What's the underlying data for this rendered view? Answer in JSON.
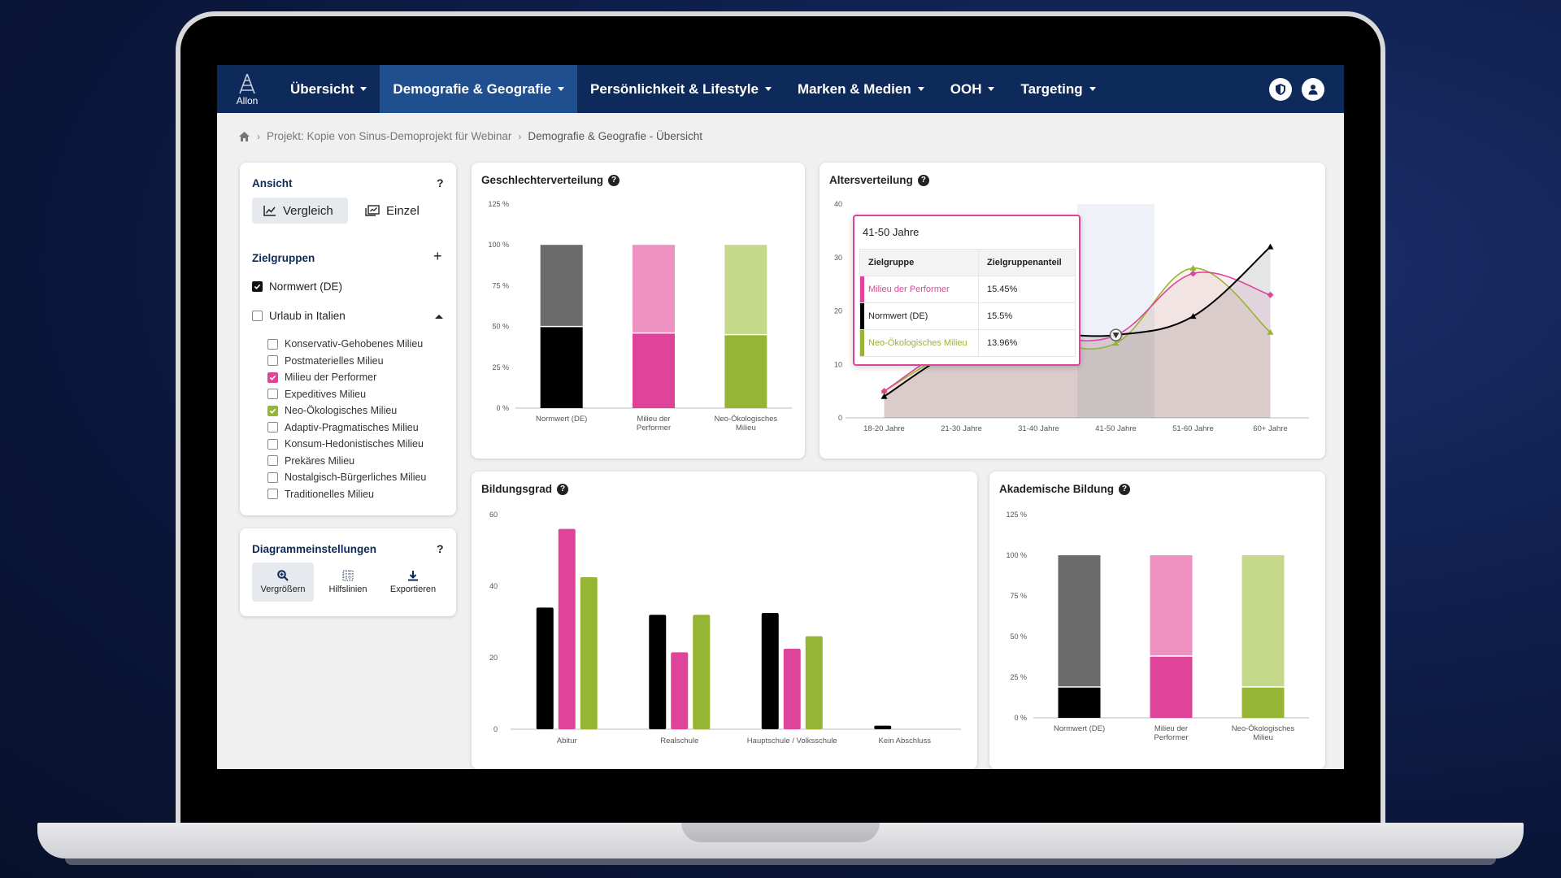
{
  "nav": {
    "logo_text": "Allon",
    "items": [
      {
        "label": "Übersicht",
        "active": false
      },
      {
        "label": "Demografie & Geografie",
        "active": true
      },
      {
        "label": "Persönlichkeit & Lifestyle",
        "active": false
      },
      {
        "label": "Marken & Medien",
        "active": false
      },
      {
        "label": "OOH",
        "active": false
      },
      {
        "label": "Targeting",
        "active": false
      }
    ],
    "icons": [
      "shield-icon",
      "user-icon"
    ]
  },
  "breadcrumb": {
    "project": "Projekt: Kopie von Sinus-Demoprojekt für Webinar",
    "current": "Demografie & Geografie - Übersicht"
  },
  "sidebar": {
    "ansicht": {
      "title": "Ansicht",
      "help": "?",
      "compare_label": "Vergleich",
      "single_label": "Einzel"
    },
    "zielgruppen": {
      "title": "Zielgruppen",
      "add": "+",
      "normwert_label": "Normwert (DE)",
      "group_label": "Urlaub in Italien",
      "milieus": [
        {
          "label": "Konservativ-Gehobenes Milieu",
          "checked": false
        },
        {
          "label": "Postmaterielles Milieu",
          "checked": false
        },
        {
          "label": "Milieu der Performer",
          "checked": true,
          "color": "#e0449a"
        },
        {
          "label": "Expeditives Milieu",
          "checked": false
        },
        {
          "label": "Neo-Ökologisches Milieu",
          "checked": true,
          "color": "#97b534"
        },
        {
          "label": "Adaptiv-Pragmatisches Milieu",
          "checked": false
        },
        {
          "label": "Konsum-Hedonistisches Milieu",
          "checked": false
        },
        {
          "label": "Prekäres Milieu",
          "checked": false
        },
        {
          "label": "Nostalgisch-Bürgerliches Milieu",
          "checked": false
        },
        {
          "label": "Traditionelles Milieu",
          "checked": false
        }
      ]
    },
    "diagramm": {
      "title": "Diagrammeinstellungen",
      "help": "?",
      "zoom_label": "Vergrößern",
      "grid_label": "Hilfslinien",
      "export_label": "Exportieren"
    }
  },
  "colors": {
    "normwert": "#000000",
    "normwert_light": "#6b6b6b",
    "performer": "#e0449a",
    "performer_light": "#ee90c0",
    "neooeko": "#97b534",
    "neooeko_light": "#c6d98a",
    "nav_bg": "#0d2a5a",
    "nav_active": "#1f4f8f"
  },
  "charts": {
    "geschlecht_title": "Geschlechterverteilung",
    "alter_title": "Altersverteilung",
    "bildung_title": "Bildungsgrad",
    "akademisch_title": "Akademische Bildung"
  },
  "tooltip": {
    "title": "41-50 Jahre",
    "col1": "Zielgruppe",
    "col2": "Zielgruppenanteil",
    "rows": [
      {
        "name": "Milieu der Performer",
        "value": "15.45%",
        "color": "#e0449a"
      },
      {
        "name": "Normwert (DE)",
        "value": "15.5%",
        "color": "#000000"
      },
      {
        "name": "Neo-Ökologisches Milieu",
        "value": "13.96%",
        "color": "#97b534"
      }
    ]
  },
  "chart_data": [
    {
      "type": "bar",
      "stacked": true,
      "categories": [
        "Normwert (DE)",
        "Milieu der Performer",
        "Neo-Ökologisches Milieu"
      ],
      "series": [
        {
          "values": [
            50,
            46,
            45
          ]
        },
        {
          "values": [
            50,
            54,
            55
          ]
        }
      ],
      "yticks": [
        "0 %",
        "25 %",
        "50 %",
        "75 %",
        "100 %",
        "125 %"
      ],
      "ylim": [
        0,
        125
      ],
      "grid": false
    },
    {
      "type": "line",
      "x": [
        "18-20 Jahre",
        "21-30 Jahre",
        "31-40 Jahre",
        "41-50 Jahre",
        "51-60 Jahre",
        "60+ Jahre"
      ],
      "series": [
        {
          "name": "Normwert (DE)",
          "values": [
            4,
            13,
            15.5,
            15.5,
            19,
            32
          ]
        },
        {
          "name": "Milieu der Performer",
          "values": [
            5,
            14,
            15,
            15.45,
            27,
            23
          ]
        },
        {
          "name": "Neo-Ökologisches Milieu",
          "values": [
            5,
            13,
            14,
            13.96,
            28,
            16
          ]
        }
      ],
      "yticks": [
        "0",
        "10",
        "20",
        "30",
        "40"
      ],
      "ylim": [
        0,
        40
      ],
      "highlight": "41-50 Jahre"
    },
    {
      "type": "bar",
      "categories": [
        "Abitur",
        "Realschule",
        "Hauptschule / Volksschule",
        "Kein Abschluss"
      ],
      "series": [
        {
          "name": "Normwert (DE)",
          "values": [
            34,
            32,
            32.5,
            1
          ]
        },
        {
          "name": "Milieu der Performer",
          "values": [
            56,
            21.5,
            22.5,
            0
          ]
        },
        {
          "name": "Neo-Ökologisches Milieu",
          "values": [
            42.5,
            32,
            26,
            0
          ]
        }
      ],
      "yticks": [
        "0",
        "20",
        "40",
        "60"
      ],
      "ylim": [
        0,
        60
      ]
    },
    {
      "type": "bar",
      "stacked": true,
      "categories": [
        "Normwert (DE)",
        "Milieu der Performer",
        "Neo-Ökologisches Milieu"
      ],
      "series": [
        {
          "values": [
            19,
            38,
            19
          ]
        },
        {
          "values": [
            81,
            62,
            81
          ]
        }
      ],
      "yticks": [
        "0 %",
        "25 %",
        "50 %",
        "75 %",
        "100 %",
        "125 %"
      ],
      "ylim": [
        0,
        125
      ]
    }
  ]
}
